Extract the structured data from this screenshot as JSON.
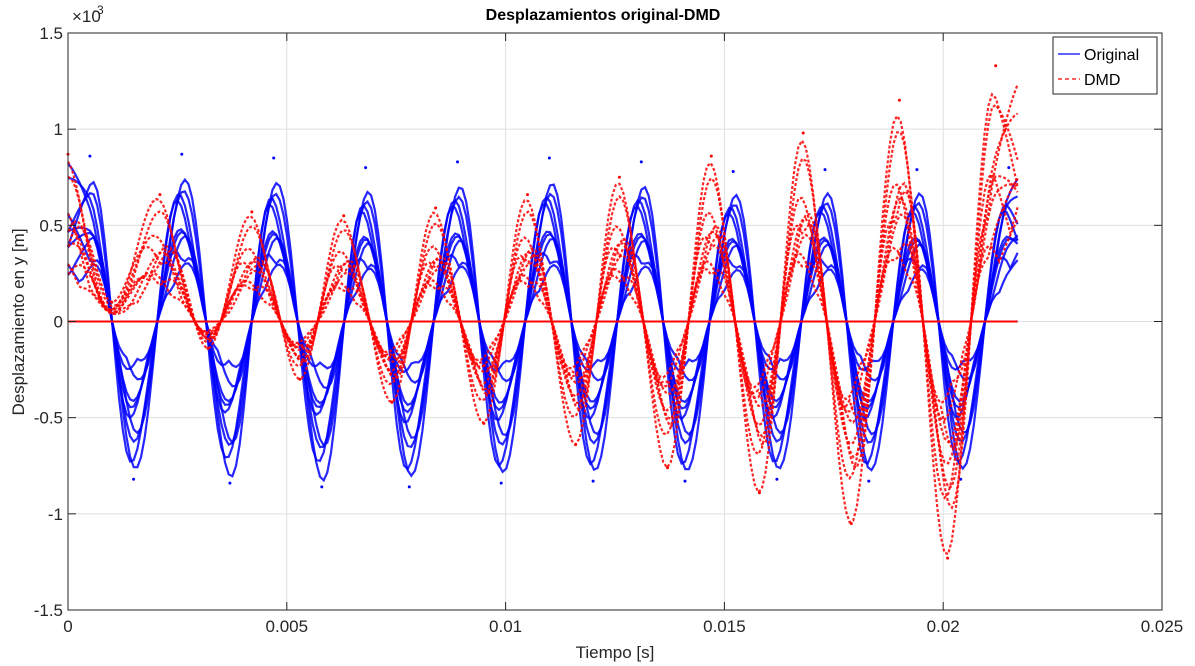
{
  "chart_data": {
    "type": "line",
    "title": "Desplazamientos original-DMD",
    "xlabel": "Tiempo [s]",
    "ylabel": "Desplazamiento en y [m]",
    "y_exponent_base": "×10",
    "y_exponent_power": "-3",
    "xlim": [
      0,
      0.025
    ],
    "ylim": [
      -1.5,
      1.5
    ],
    "x_ticks": [
      0,
      0.005,
      0.01,
      0.015,
      0.02,
      0.025
    ],
    "x_tick_labels": [
      "0",
      "0.005",
      "0.01",
      "0.015",
      "0.02",
      "0.025"
    ],
    "y_ticks": [
      -1.5,
      -1,
      -0.5,
      0,
      0.5,
      1,
      1.5
    ],
    "y_tick_labels": [
      "-1.5",
      "-1",
      "-0.5",
      "0",
      "0.5",
      "1",
      "1.5"
    ],
    "grid": true,
    "legend_position": "top-right",
    "t_end": 0.0217,
    "series": [
      {
        "name": "Original",
        "color": "#0000ff",
        "style": "solid",
        "peaks": [
          [
            0.0005,
            0.86
          ],
          [
            0.0015,
            -0.82
          ],
          [
            0.0026,
            0.87
          ],
          [
            0.0037,
            -0.84
          ],
          [
            0.0047,
            0.85
          ],
          [
            0.0058,
            -0.86
          ],
          [
            0.0068,
            0.8
          ],
          [
            0.0078,
            -0.86
          ],
          [
            0.0089,
            0.83
          ],
          [
            0.0099,
            -0.84
          ],
          [
            0.011,
            0.85
          ],
          [
            0.012,
            -0.83
          ],
          [
            0.0131,
            0.83
          ],
          [
            0.0141,
            -0.83
          ],
          [
            0.0152,
            0.78
          ],
          [
            0.0162,
            -0.82
          ],
          [
            0.0173,
            0.79
          ],
          [
            0.0183,
            -0.83
          ],
          [
            0.0194,
            0.79
          ],
          [
            0.0204,
            -0.82
          ],
          [
            0.0215,
            0.8
          ]
        ]
      },
      {
        "name": "DMD",
        "color": "#ff0000",
        "style": "dashed",
        "peaks": [
          [
            0.0,
            0.87
          ],
          [
            0.001,
            0.1
          ],
          [
            0.0021,
            0.66
          ],
          [
            0.0032,
            -0.14
          ],
          [
            0.0042,
            0.57
          ],
          [
            0.0053,
            -0.3
          ],
          [
            0.0063,
            0.55
          ],
          [
            0.0074,
            -0.42
          ],
          [
            0.0084,
            0.59
          ],
          [
            0.0095,
            -0.53
          ],
          [
            0.0105,
            0.66
          ],
          [
            0.0116,
            -0.64
          ],
          [
            0.0126,
            0.75
          ],
          [
            0.0137,
            -0.76
          ],
          [
            0.0147,
            0.86
          ],
          [
            0.0158,
            -0.89
          ],
          [
            0.0168,
            0.98
          ],
          [
            0.0179,
            -1.05
          ],
          [
            0.019,
            1.15
          ],
          [
            0.0201,
            -1.23
          ],
          [
            0.0212,
            1.33
          ]
        ]
      }
    ]
  }
}
